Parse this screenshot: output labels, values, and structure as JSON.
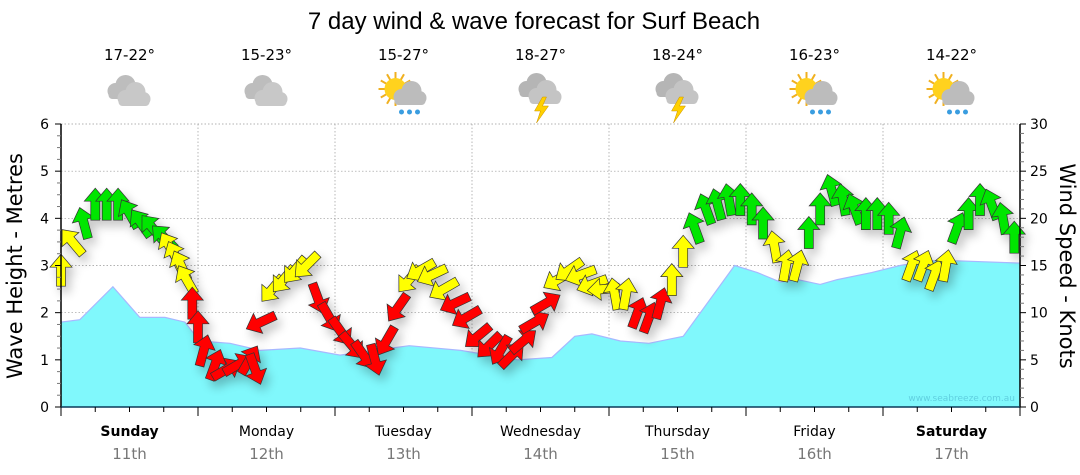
{
  "chart_data": {
    "type": "area",
    "title": "7 day wind & wave forecast for Surf Beach",
    "ylabel_left": "Wave Height - Metres",
    "ylabel_right": "Wind Speed - Knots",
    "ylim_left": [
      0,
      6
    ],
    "ylim_right": [
      0,
      30
    ],
    "yticks_left": [
      "0",
      "1",
      "2",
      "3",
      "4",
      "5",
      "6"
    ],
    "yticks_right": [
      "0",
      "5",
      "10",
      "15",
      "20",
      "25",
      "30"
    ],
    "grid": true,
    "hours_total": 168,
    "watermark": "www.seabreeze.com.au",
    "days": [
      {
        "name": "Sunday",
        "date": "11th",
        "bold": true,
        "temp": "17-22°",
        "icon": "cloudy-icon"
      },
      {
        "name": "Monday",
        "date": "12th",
        "bold": false,
        "temp": "15-23°",
        "icon": "cloudy-icon"
      },
      {
        "name": "Tuesday",
        "date": "13th",
        "bold": false,
        "temp": "15-27°",
        "icon": "sun-shower-icon"
      },
      {
        "name": "Wednesday",
        "date": "14th",
        "bold": false,
        "temp": "18-27°",
        "icon": "thunderstorm-icon"
      },
      {
        "name": "Thursday",
        "date": "15th",
        "bold": false,
        "temp": "18-24°",
        "icon": "thunderstorm-icon"
      },
      {
        "name": "Friday",
        "date": "16th",
        "bold": false,
        "temp": "16-23°",
        "icon": "sun-shower-icon"
      },
      {
        "name": "Saturday",
        "date": "17th",
        "bold": true,
        "temp": "14-22°",
        "icon": "sun-shower-icon"
      }
    ],
    "wave_series": {
      "name": "Wave height (m)",
      "hours": [
        0,
        3.3,
        9.1,
        13.8,
        18.2,
        21.7,
        24.3,
        29.6,
        34.9,
        41.9,
        48.9,
        61,
        70,
        75,
        80,
        86,
        90,
        93,
        98,
        103,
        109,
        115,
        118,
        122,
        126,
        129,
        133,
        136,
        142,
        147,
        152,
        157,
        168
      ],
      "values": [
        1.8,
        1.85,
        2.55,
        1.9,
        1.9,
        1.8,
        1.4,
        1.35,
        1.2,
        1.25,
        1.1,
        1.3,
        1.2,
        1.1,
        1.0,
        1.05,
        1.5,
        1.55,
        1.4,
        1.35,
        1.5,
        2.5,
        3.0,
        2.85,
        2.65,
        2.7,
        2.6,
        2.7,
        2.85,
        3.0,
        3.1,
        3.1,
        3.05
      ]
    },
    "wind_series": {
      "name": "Wind speed (knots) and direction",
      "color_thresholds": {
        "red_below": 12,
        "green_from": 18
      },
      "colors": {
        "red": "#ff0000",
        "yellow": "#ffff00",
        "green": "#00e600"
      },
      "hours": [
        0,
        2,
        4,
        6,
        8,
        10,
        12,
        14,
        16,
        18,
        19,
        20,
        21,
        22,
        23,
        24,
        25,
        27,
        29,
        31,
        33,
        34,
        35,
        37,
        39,
        41,
        43,
        45,
        47,
        49,
        51,
        53,
        55,
        57,
        59,
        61,
        63,
        65,
        67,
        69,
        71,
        73,
        75,
        77,
        79,
        81,
        83,
        85,
        87,
        89,
        91,
        93,
        95,
        97,
        99,
        101,
        103,
        105,
        107,
        109,
        111,
        113,
        115,
        117,
        119,
        121,
        123,
        125,
        127,
        129,
        131,
        133,
        135,
        137,
        139,
        141,
        143,
        145,
        147,
        149,
        151,
        153,
        155,
        157,
        159,
        161,
        163,
        165,
        167
      ],
      "knots": [
        14.5,
        17.5,
        19.5,
        21.5,
        21.5,
        21.5,
        20.5,
        19.5,
        19,
        18,
        17,
        16,
        15,
        13.5,
        11,
        8.5,
        6,
        4.5,
        4,
        4.5,
        5,
        4,
        9,
        12.5,
        13.5,
        14.5,
        15,
        11.5,
        9.5,
        8,
        6.5,
        5.5,
        5,
        7,
        10.5,
        13.5,
        14.5,
        14,
        12.5,
        11,
        9.5,
        7.5,
        6.5,
        6,
        5.5,
        7,
        9,
        11,
        13.5,
        14.5,
        14,
        13,
        12.5,
        12,
        12,
        10,
        9.5,
        11,
        13.5,
        16.5,
        19,
        21,
        21.5,
        22,
        22,
        21,
        19.5,
        17,
        15,
        15,
        18.5,
        21,
        23,
        22,
        21,
        20.5,
        20.5,
        20,
        18.5,
        15,
        15,
        14,
        15,
        19,
        20.5,
        22,
        21.5,
        20,
        18
      ],
      "heading_deg": [
        0,
        -40,
        -15,
        0,
        0,
        0,
        -30,
        -35,
        -40,
        -45,
        -30,
        -25,
        -25,
        -30,
        0,
        0,
        15,
        20,
        60,
        60,
        30,
        160,
        245,
        220,
        220,
        220,
        225,
        160,
        150,
        145,
        140,
        145,
        165,
        210,
        215,
        220,
        240,
        245,
        240,
        245,
        240,
        230,
        225,
        210,
        45,
        50,
        60,
        60,
        240,
        235,
        250,
        250,
        265,
        350,
        10,
        20,
        20,
        15,
        0,
        0,
        -20,
        -20,
        -15,
        -10,
        0,
        0,
        0,
        -10,
        10,
        15,
        0,
        0,
        -15,
        -10,
        -20,
        0,
        0,
        0,
        15,
        20,
        20,
        20,
        10,
        20,
        0,
        0,
        -20,
        -10,
        0
      ]
    },
    "colors": {
      "wave_fill": "#80f8fc",
      "wave_line": "#a8b8ff",
      "grid": "#999999"
    }
  }
}
